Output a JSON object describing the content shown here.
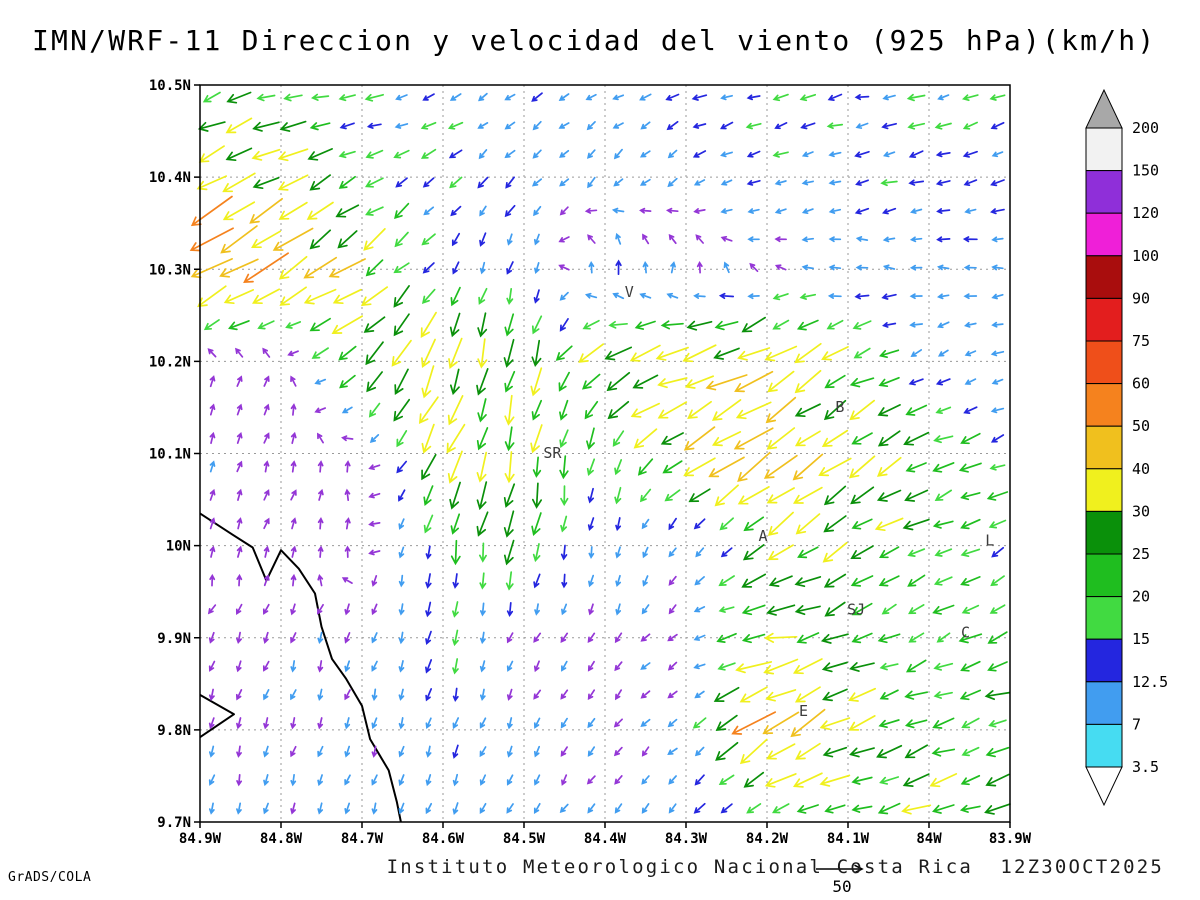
{
  "title": "IMN/WRF-11 Direccion y velocidad del viento (925 hPa)(km/h)",
  "footer": {
    "credit": "Instituto Meteorologico Nacional Costa Rica  12Z30OCT2025",
    "engine": "GrADS/COLA",
    "ref_vector_label": "50",
    "ref_vector_speed_kmh": 50
  },
  "chart_data": {
    "type": "vector_field",
    "title": "IMN/WRF-11 Direccion y velocidad del viento (925 hPa)(km/h)",
    "model": "IMN/WRF-11",
    "level": "925 hPa",
    "units": "km/h",
    "valid_time": "12Z30OCT2025",
    "lon_range_w": [
      84.9,
      83.9
    ],
    "lat_range_n": [
      9.7,
      10.5
    ],
    "grid_spacing_deg": 0.1,
    "axes": {
      "x": {
        "tick_lons_w": [
          84.9,
          84.8,
          84.7,
          84.6,
          84.5,
          84.4,
          84.3,
          84.2,
          84.1,
          84.0,
          83.9
        ],
        "tick_labels": [
          "84.9W",
          "84.8W",
          "84.7W",
          "84.6W",
          "84.5W",
          "84.4W",
          "84.3W",
          "84.2W",
          "84.1W",
          "84W",
          "83.9W"
        ]
      },
      "y": {
        "tick_lats_n": [
          10.5,
          10.4,
          10.3,
          10.2,
          10.1,
          10.0,
          9.9,
          9.8,
          9.7
        ],
        "tick_labels": [
          "10.5N",
          "10.4N",
          "10.3N",
          "10.2N",
          "10.1N",
          "10N",
          "9.9N",
          "9.8N",
          "9.7N"
        ]
      }
    },
    "grid": {
      "lons_w": [
        84.9,
        84.8,
        84.7,
        84.6,
        84.5,
        84.4,
        84.3,
        84.2,
        84.1,
        84.0,
        83.9
      ],
      "lats_n": [
        10.5,
        10.4,
        10.3,
        10.2,
        10.1,
        10.0,
        9.9,
        9.8,
        9.7
      ],
      "u_kmh": [
        [
          -22,
          -20,
          -15,
          -12,
          -9,
          -9,
          -11,
          -13,
          -14,
          -14,
          -13
        ],
        [
          -36,
          -27,
          -17,
          -10,
          -8,
          -8,
          -9,
          -11,
          -13,
          -13,
          -12
        ],
        [
          -52,
          -39,
          -26,
          -6,
          -3,
          -2,
          1,
          -5,
          -9,
          -10,
          -10
        ],
        [
          3,
          2,
          -25,
          -13,
          -5,
          -27,
          -37,
          -32,
          -23,
          -11,
          -9
        ],
        [
          2,
          2,
          -1,
          -16,
          -6,
          -4,
          -28,
          -34,
          -26,
          -23,
          -16
        ],
        [
          1,
          2,
          0,
          -4,
          -3,
          -2,
          -4,
          -22,
          -23,
          -19,
          -14
        ],
        [
          -2,
          -2,
          -2,
          -3,
          -3,
          -3,
          -6,
          -30,
          -20,
          -16,
          -22
        ],
        [
          -2,
          -2,
          -2,
          -3,
          -3,
          -4,
          -5,
          -42,
          -27,
          -22,
          -19
        ],
        [
          -2,
          -2,
          -3,
          -4,
          -4,
          -5,
          -8,
          -15,
          -19,
          -25,
          -22
        ]
      ],
      "v_kmh": [
        [
          -7,
          -5,
          -3,
          -5,
          -6,
          -5,
          -4,
          -3,
          -3,
          -3,
          -3
        ],
        [
          -17,
          -13,
          -9,
          -9,
          -9,
          -8,
          -6,
          -5,
          -4,
          -4,
          -4
        ],
        [
          -32,
          -25,
          -19,
          -11,
          -13,
          15,
          9,
          3,
          2,
          1,
          0
        ],
        [
          6,
          5,
          -21,
          -32,
          -27,
          -15,
          -13,
          -18,
          -11,
          -5,
          -4
        ],
        [
          6,
          5,
          3,
          -28,
          -26,
          -18,
          -17,
          -27,
          -18,
          -9,
          -7
        ],
        [
          6,
          6,
          4,
          -20,
          -23,
          -10,
          -6,
          -15,
          -16,
          -9,
          -8
        ],
        [
          -5,
          -6,
          -6,
          -14,
          -6,
          -5,
          -4,
          -6,
          -8,
          -8,
          -8
        ],
        [
          -6,
          -6,
          -6,
          -12,
          -6,
          -5,
          -4,
          -28,
          -12,
          -7,
          -6
        ],
        [
          -8,
          -8,
          -8,
          -9,
          -7,
          -7,
          -7,
          -9,
          -7,
          -9,
          -7
        ]
      ]
    },
    "colorbar": {
      "levels": [
        3.5,
        7,
        12.5,
        15,
        20,
        25,
        30,
        40,
        50,
        60,
        75,
        90,
        100,
        120,
        150,
        200
      ],
      "band_colors": [
        "#46dcf2",
        "#419df0",
        "#2426df",
        "#41da41",
        "#1fbe1f",
        "#0a900a",
        "#f0f01e",
        "#f0c01e",
        "#f5821e",
        "#ef4f1a",
        "#e31e1e",
        "#a90d0d",
        "#ef1fd8",
        "#8f2fd9",
        "#f2f2f2"
      ],
      "below_color": "#ffffff",
      "above_color": "#a8a8a8",
      "labels": [
        "200",
        "150",
        "120",
        "100",
        "90",
        "75",
        "60",
        "50",
        "40",
        "30",
        "25",
        "20",
        "15",
        "12.5",
        "7",
        "3.5"
      ]
    },
    "arrow_color_calm": "#9436d6",
    "stations": [
      {
        "label": "V",
        "lon_w": 84.37,
        "lat_n": 10.27
      },
      {
        "label": "B",
        "lon_w": 84.11,
        "lat_n": 10.145
      },
      {
        "label": "SR",
        "lon_w": 84.465,
        "lat_n": 10.095
      },
      {
        "label": "A",
        "lon_w": 84.205,
        "lat_n": 10.005
      },
      {
        "label": "SJ",
        "lon_w": 84.09,
        "lat_n": 9.925
      },
      {
        "label": "C",
        "lon_w": 83.955,
        "lat_n": 9.9
      },
      {
        "label": "E",
        "lon_w": 84.155,
        "lat_n": 9.815
      },
      {
        "label": "L",
        "lon_w": 83.925,
        "lat_n": 10.0
      }
    ],
    "coastlines": [
      [
        [
          84.9,
          10.035
        ],
        [
          84.86,
          10.012
        ],
        [
          84.835,
          9.998
        ],
        [
          84.818,
          9.962
        ],
        [
          84.8,
          9.995
        ],
        [
          84.778,
          9.975
        ],
        [
          84.758,
          9.948
        ],
        [
          84.75,
          9.912
        ],
        [
          84.737,
          9.877
        ],
        [
          84.72,
          9.856
        ],
        [
          84.7,
          9.826
        ],
        [
          84.69,
          9.79
        ],
        [
          84.667,
          9.756
        ],
        [
          84.657,
          9.722
        ],
        [
          84.652,
          9.7
        ]
      ],
      [
        [
          84.9,
          9.838
        ],
        [
          84.858,
          9.817
        ],
        [
          84.9,
          9.792
        ]
      ]
    ]
  }
}
